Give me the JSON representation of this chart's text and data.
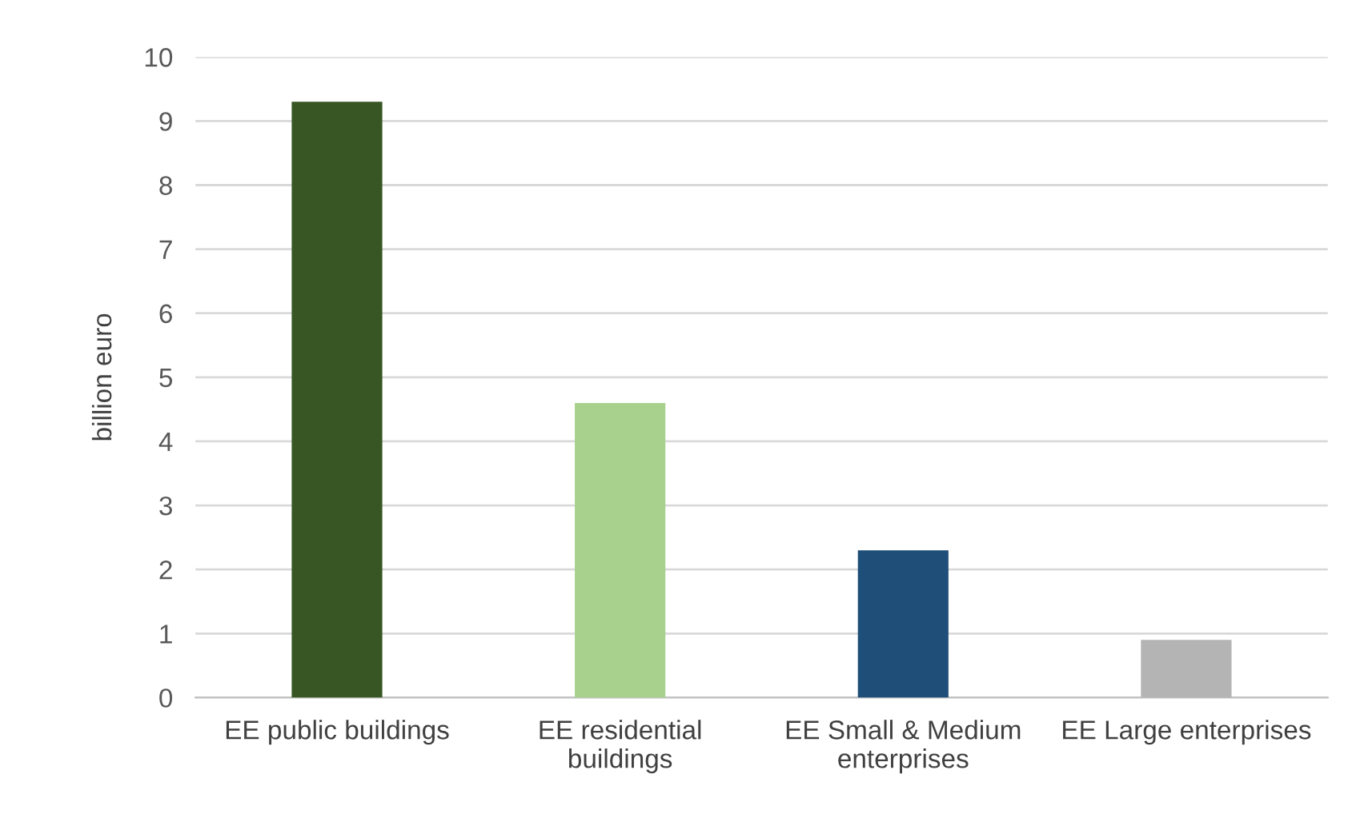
{
  "chart_data": {
    "type": "bar",
    "ylabel": "billion euro",
    "categories": [
      "EE public buildings",
      "EE residential\nbuildings",
      "EE Small & Medium\nenterprises",
      "EE Large enterprises"
    ],
    "values": [
      9.3,
      4.6,
      2.3,
      0.9
    ],
    "colors": [
      "#375623",
      "#a9d18e",
      "#1f4e79",
      "#b4b4b4"
    ],
    "ylim": [
      0,
      10
    ],
    "yticks": [
      0,
      1,
      2,
      3,
      4,
      5,
      6,
      7,
      8,
      9,
      10
    ],
    "grid": "y"
  }
}
